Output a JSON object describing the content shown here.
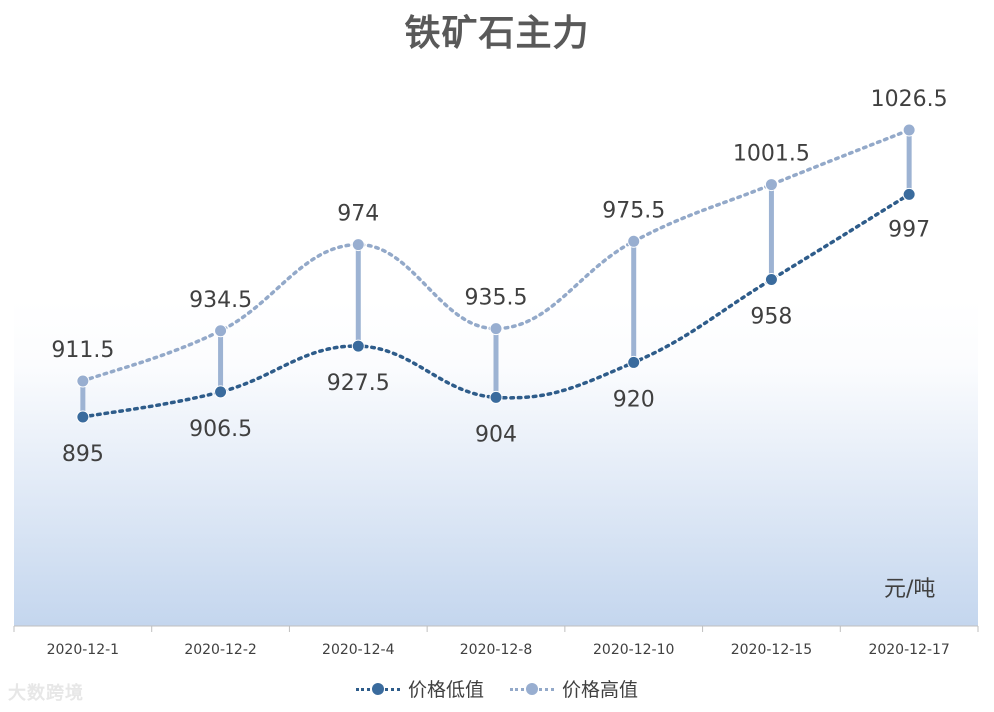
{
  "chart_data": {
    "type": "line",
    "title": "铁矿石主力",
    "unit_label": "元/吨",
    "categories": [
      "2020-12-1",
      "2020-12-2",
      "2020-12-4",
      "2020-12-8",
      "2020-12-10",
      "2020-12-15",
      "2020-12-17"
    ],
    "series": [
      {
        "name": "价格低值",
        "color": "#2e5c8a",
        "values": [
          895,
          906.5,
          927.5,
          904,
          920,
          958,
          997
        ],
        "labels": [
          "895",
          "906.5",
          "927.5",
          "904",
          "920",
          "958",
          "997"
        ]
      },
      {
        "name": "价格高值",
        "color": "#93a9c9",
        "values": [
          911.5,
          934.5,
          974,
          935.5,
          975.5,
          1001.5,
          1026.5
        ],
        "labels": [
          "911.5",
          "934.5",
          "974",
          "935.5",
          "975.5",
          "1001.5",
          "1026.5"
        ]
      }
    ],
    "high_low_lines": true,
    "smoothed": true,
    "line_style": "dotted",
    "legend_position": "bottom",
    "grid": false,
    "y_axis_visible": false,
    "background": "gradient-white-to-light-blue"
  },
  "watermark": "大数跨境"
}
